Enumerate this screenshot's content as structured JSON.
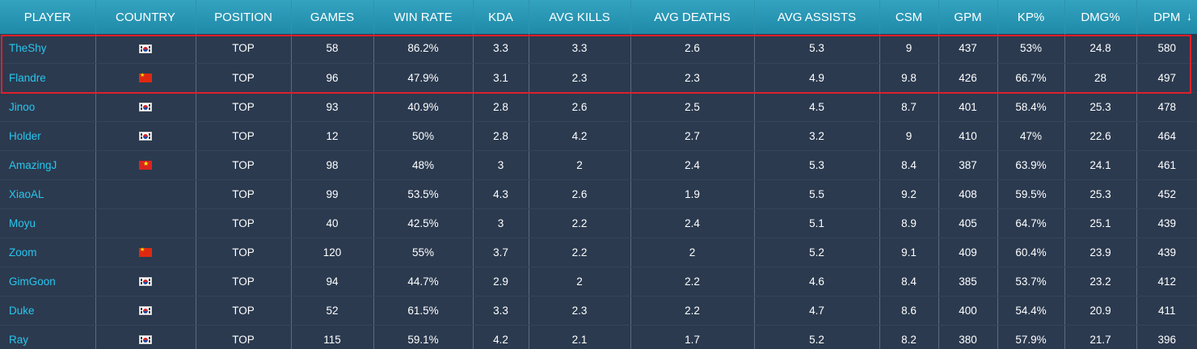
{
  "colors": {
    "background": "#2b3a4f",
    "header_bg": "#2596b4",
    "player_link": "#29c6ee",
    "highlight_border": "#e0202a"
  },
  "columns": [
    "PLAYER",
    "COUNTRY",
    "POSITION",
    "GAMES",
    "WIN RATE",
    "KDA",
    "AVG KILLS",
    "AVG DEATHS",
    "AVG ASSISTS",
    "CSM",
    "GPM",
    "KP%",
    "DMG%",
    "DPM"
  ],
  "sort": {
    "column": "DPM",
    "direction": "desc",
    "icon": "sort-down-arrow-icon",
    "glyph": "↓"
  },
  "rows": [
    {
      "player": "TheShy",
      "country": "kr",
      "position": "TOP",
      "games": "58",
      "win_rate": "86.2%",
      "kda": "3.3",
      "avg_kills": "3.3",
      "avg_deaths": "2.6",
      "avg_assists": "5.3",
      "csm": "9",
      "gpm": "437",
      "kp": "53%",
      "dmg": "24.8",
      "dpm": "580"
    },
    {
      "player": "Flandre",
      "country": "cn",
      "position": "TOP",
      "games": "96",
      "win_rate": "47.9%",
      "kda": "3.1",
      "avg_kills": "2.3",
      "avg_deaths": "2.3",
      "avg_assists": "4.9",
      "csm": "9.8",
      "gpm": "426",
      "kp": "66.7%",
      "dmg": "28",
      "dpm": "497"
    },
    {
      "player": "Jinoo",
      "country": "kr",
      "position": "TOP",
      "games": "93",
      "win_rate": "40.9%",
      "kda": "2.8",
      "avg_kills": "2.6",
      "avg_deaths": "2.5",
      "avg_assists": "4.5",
      "csm": "8.7",
      "gpm": "401",
      "kp": "58.4%",
      "dmg": "25.3",
      "dpm": "478"
    },
    {
      "player": "Holder",
      "country": "kr",
      "position": "TOP",
      "games": "12",
      "win_rate": "50%",
      "kda": "2.8",
      "avg_kills": "4.2",
      "avg_deaths": "2.7",
      "avg_assists": "3.2",
      "csm": "9",
      "gpm": "410",
      "kp": "47%",
      "dmg": "22.6",
      "dpm": "464"
    },
    {
      "player": "AmazingJ",
      "country": "vn",
      "position": "TOP",
      "games": "98",
      "win_rate": "48%",
      "kda": "3",
      "avg_kills": "2",
      "avg_deaths": "2.4",
      "avg_assists": "5.3",
      "csm": "8.4",
      "gpm": "387",
      "kp": "63.9%",
      "dmg": "24.1",
      "dpm": "461"
    },
    {
      "player": "XiaoAL",
      "country": "",
      "position": "TOP",
      "games": "99",
      "win_rate": "53.5%",
      "kda": "4.3",
      "avg_kills": "2.6",
      "avg_deaths": "1.9",
      "avg_assists": "5.5",
      "csm": "9.2",
      "gpm": "408",
      "kp": "59.5%",
      "dmg": "25.3",
      "dpm": "452"
    },
    {
      "player": "Moyu",
      "country": "",
      "position": "TOP",
      "games": "40",
      "win_rate": "42.5%",
      "kda": "3",
      "avg_kills": "2.2",
      "avg_deaths": "2.4",
      "avg_assists": "5.1",
      "csm": "8.9",
      "gpm": "405",
      "kp": "64.7%",
      "dmg": "25.1",
      "dpm": "439"
    },
    {
      "player": "Zoom",
      "country": "cn",
      "position": "TOP",
      "games": "120",
      "win_rate": "55%",
      "kda": "3.7",
      "avg_kills": "2.2",
      "avg_deaths": "2",
      "avg_assists": "5.2",
      "csm": "9.1",
      "gpm": "409",
      "kp": "60.4%",
      "dmg": "23.9",
      "dpm": "439"
    },
    {
      "player": "GimGoon",
      "country": "kr",
      "position": "TOP",
      "games": "94",
      "win_rate": "44.7%",
      "kda": "2.9",
      "avg_kills": "2",
      "avg_deaths": "2.2",
      "avg_assists": "4.6",
      "csm": "8.4",
      "gpm": "385",
      "kp": "53.7%",
      "dmg": "23.2",
      "dpm": "412"
    },
    {
      "player": "Duke",
      "country": "kr",
      "position": "TOP",
      "games": "52",
      "win_rate": "61.5%",
      "kda": "3.3",
      "avg_kills": "2.3",
      "avg_deaths": "2.2",
      "avg_assists": "4.7",
      "csm": "8.6",
      "gpm": "400",
      "kp": "54.4%",
      "dmg": "20.9",
      "dpm": "411"
    },
    {
      "player": "Ray",
      "country": "kr",
      "position": "TOP",
      "games": "115",
      "win_rate": "59.1%",
      "kda": "4.2",
      "avg_kills": "2.1",
      "avg_deaths": "1.7",
      "avg_assists": "5.2",
      "csm": "8.2",
      "gpm": "380",
      "kp": "57.9%",
      "dmg": "21.7",
      "dpm": "396"
    }
  ]
}
